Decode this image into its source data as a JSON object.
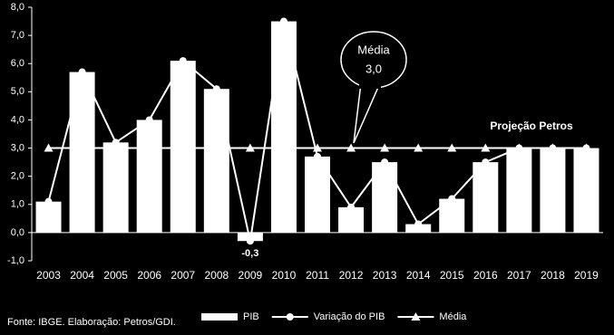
{
  "chart_data": {
    "type": "bar-line",
    "categories": [
      "2003",
      "2004",
      "2005",
      "2006",
      "2007",
      "2008",
      "2009",
      "2010",
      "2011",
      "2012",
      "2013",
      "2014",
      "2015",
      "2016",
      "2017",
      "2018",
      "2019"
    ],
    "series": [
      {
        "name": "PIB",
        "kind": "bar",
        "color": "#ffffff",
        "values": [
          1.1,
          5.7,
          3.2,
          4.0,
          6.1,
          5.1,
          -0.3,
          7.5,
          2.7,
          0.9,
          2.5,
          0.3,
          1.2,
          2.5,
          3.0,
          3.0,
          3.0
        ],
        "value_labels": [
          null,
          null,
          null,
          null,
          null,
          null,
          "-0,3",
          null,
          null,
          null,
          null,
          null,
          null,
          null,
          null,
          null,
          null
        ]
      },
      {
        "name": "Variação do PIB",
        "kind": "line",
        "marker": "circle",
        "color": "#ffffff",
        "values": [
          1.1,
          5.7,
          3.2,
          4.0,
          6.1,
          5.1,
          -0.3,
          7.5,
          2.7,
          0.9,
          2.5,
          0.3,
          1.2,
          2.5,
          3.0,
          3.0,
          3.0
        ]
      },
      {
        "name": "Média",
        "kind": "line",
        "marker": "triangle",
        "color": "#ffffff",
        "values": [
          3.0,
          3.0,
          3.0,
          3.0,
          3.0,
          3.0,
          3.0,
          3.0,
          3.0,
          3.0,
          3.0,
          3.0,
          3.0,
          3.0,
          3.0,
          3.0,
          3.0
        ]
      }
    ],
    "ylim": [
      -1,
      8
    ],
    "yticks": [
      {
        "value": -1,
        "label": "-1,0"
      },
      {
        "value": 0,
        "label": "0,0"
      },
      {
        "value": 1,
        "label": "1,0"
      },
      {
        "value": 2,
        "label": "2,0"
      },
      {
        "value": 3,
        "label": "3,0"
      },
      {
        "value": 4,
        "label": "4,0"
      },
      {
        "value": 5,
        "label": "5,0"
      },
      {
        "value": 6,
        "label": "6,0"
      },
      {
        "value": 7,
        "label": "7,0"
      },
      {
        "value": 8,
        "label": "8,0"
      }
    ],
    "callout": {
      "title": "Média",
      "value": "3,0"
    },
    "annotation": "Projeção Petros",
    "source": "Fonte: IBGE. Elaboração: Petros/GDI.",
    "legend": "bottom"
  }
}
